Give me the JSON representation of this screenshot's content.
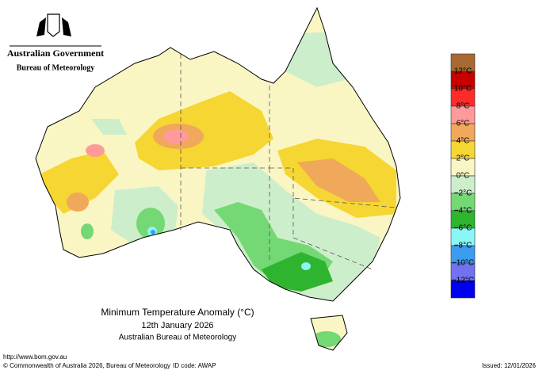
{
  "header": {
    "government": "Australian Government",
    "agency": "Bureau of Meteorology"
  },
  "title": {
    "line1": "Minimum Temperature Anomaly (°C)",
    "line2": "12th January 2026",
    "line3": "Australian Bureau of Meteorology"
  },
  "legend": {
    "colors": [
      "#a66a32",
      "#c80000",
      "#ff2a2a",
      "#ff9a9a",
      "#f0a85a",
      "#f6d632",
      "#faf6c4",
      "#cdeecb",
      "#74d874",
      "#2fb42f",
      "#8af6f6",
      "#3c9cf0",
      "#7272f0",
      "#0000f0"
    ],
    "labels": [
      "12°C",
      "10°C",
      "8°C",
      "6°C",
      "4°C",
      "2°C",
      "0°C",
      "−2°C",
      "−4°C",
      "−6°C",
      "−8°C",
      "−10°C",
      "−12°C"
    ]
  },
  "footer": {
    "url": "http://www.bom.gov.au",
    "copyright": "© Commonwealth of Australia 2026, Bureau of Meteorology",
    "id_code": "ID code: AWAP",
    "issued": "Issued: 12/01/2026"
  }
}
